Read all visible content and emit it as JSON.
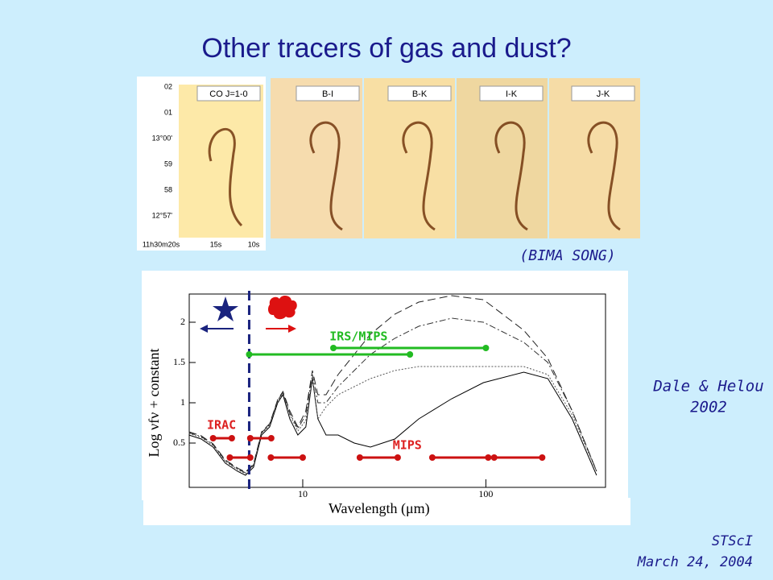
{
  "title": "Other tracers of gas and dust?",
  "images": {
    "labels": [
      "CO J=1-0",
      "B-I",
      "B-K",
      "I-K",
      "J-K"
    ],
    "dec_labels": [
      "02",
      "01",
      "13°00'",
      "59",
      "58",
      "12°57'"
    ],
    "ra_labels": [
      "11h30m20s",
      "15s",
      "10s"
    ],
    "caption": "(BIMA SONG)"
  },
  "chart_data": {
    "type": "line",
    "log_x": true,
    "xlabel": "Wavelength (μm)",
    "ylabel": "Log νfν + constant",
    "xlim": [
      2.4,
      450
    ],
    "ylim": [
      -0.05,
      2.35
    ],
    "xticks": [
      10,
      100
    ],
    "yticks": [
      0.5,
      1,
      1.5,
      2
    ],
    "divider_x": 5.1,
    "divider_color": "#1a237e",
    "x": [
      2.39,
      2.79,
      3.24,
      3.78,
      4.4,
      4.87,
      5.39,
      5.96,
      6.6,
      7.3,
      7.8,
      8.5,
      9.4,
      10.4,
      11.3,
      12.1,
      13.4,
      15.6,
      19.1,
      23.4,
      31.8,
      43,
      65,
      97,
      161,
      218,
      296,
      402
    ],
    "series": [
      {
        "color": "#000000",
        "dash": "none",
        "values": [
          0.6,
          0.55,
          0.45,
          0.25,
          0.15,
          0.1,
          0.2,
          0.6,
          0.7,
          1.0,
          1.1,
          0.8,
          0.6,
          0.7,
          1.3,
          0.8,
          0.6,
          0.6,
          0.5,
          0.45,
          0.55,
          0.8,
          1.05,
          1.25,
          1.38,
          1.3,
          0.8,
          0.1
        ]
      },
      {
        "color": "#555555",
        "dash": "2 2",
        "values": [
          0.62,
          0.57,
          0.47,
          0.27,
          0.17,
          0.12,
          0.22,
          0.62,
          0.72,
          1.02,
          1.12,
          0.85,
          0.65,
          0.78,
          1.3,
          0.8,
          0.95,
          1.1,
          1.2,
          1.3,
          1.4,
          1.45,
          1.45,
          1.45,
          1.45,
          1.35,
          0.85,
          0.15
        ]
      },
      {
        "color": "#333333",
        "dash": "8 3 2 3",
        "values": [
          0.63,
          0.58,
          0.48,
          0.28,
          0.18,
          0.13,
          0.23,
          0.63,
          0.73,
          1.03,
          1.13,
          0.87,
          0.68,
          0.85,
          1.35,
          1.0,
          1.0,
          1.2,
          1.4,
          1.6,
          1.8,
          1.95,
          2.05,
          2.0,
          1.75,
          1.5,
          0.9,
          0.15
        ]
      },
      {
        "color": "#222222",
        "dash": "10 5",
        "values": [
          0.64,
          0.59,
          0.49,
          0.29,
          0.19,
          0.14,
          0.24,
          0.64,
          0.74,
          1.04,
          1.14,
          0.9,
          0.7,
          0.9,
          1.4,
          1.1,
          1.1,
          1.35,
          1.6,
          1.85,
          2.1,
          2.25,
          2.33,
          2.28,
          1.9,
          1.55,
          0.9,
          0.15
        ]
      }
    ],
    "bands": [
      {
        "x": [
          3.24,
          4.1
        ],
        "y": 0.56,
        "color": "#cc1111"
      },
      {
        "x": [
          5.17,
          6.73
        ],
        "y": 0.56,
        "color": "#cc1111"
      },
      {
        "x": [
          4.0,
          5.17
        ],
        "y": 0.32,
        "color": "#cc1111"
      },
      {
        "x": [
          6.7,
          10
        ],
        "y": 0.32,
        "color": "#cc1111"
      },
      {
        "x": [
          20.5,
          33
        ],
        "y": 0.32,
        "color": "#cc1111"
      },
      {
        "x": [
          51,
          103
        ],
        "y": 0.32,
        "color": "#cc1111"
      },
      {
        "x": [
          111,
          203
        ],
        "y": 0.32,
        "color": "#cc1111"
      },
      {
        "x": [
          14.7,
          100
        ],
        "y": 1.68,
        "color": "#22bb22"
      },
      {
        "x": [
          5.1,
          38.5
        ],
        "y": 1.6,
        "color": "#22bb22"
      }
    ],
    "annotations": [
      {
        "text": "IRAC",
        "x": 3.0,
        "y": 0.72,
        "color": "#dd2222"
      },
      {
        "text": "IRS/MIPS",
        "x": 14.0,
        "y": 1.82,
        "color": "#22bb22"
      },
      {
        "text": "MIPS",
        "x": 31,
        "y": 0.47,
        "color": "#dd2222"
      }
    ]
  },
  "credit": {
    "lines": [
      "Dale & Helou",
      "2002"
    ]
  },
  "footer": {
    "lines": [
      "STScI",
      "March 24, 2004"
    ]
  }
}
